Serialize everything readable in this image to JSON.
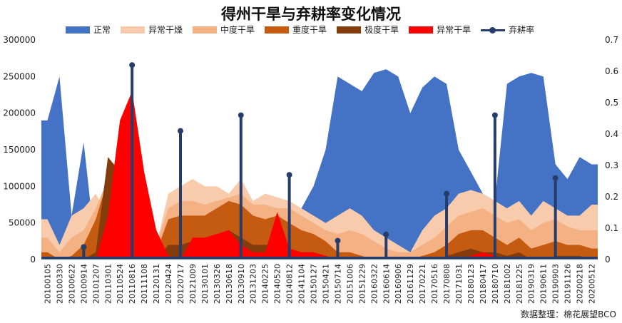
{
  "chart_data": {
    "type": "area",
    "title": "得州干旱与弃耕率变化情况",
    "y_left_ticks": [
      "0",
      "50000",
      "100000",
      "150000",
      "200000",
      "250000",
      "300000"
    ],
    "y_left_range": [
      0,
      300000
    ],
    "y_right_ticks": [
      "0",
      "0.1",
      "0.2",
      "0.3",
      "0.4",
      "0.5",
      "0.6",
      "0.7"
    ],
    "y_right_range": [
      0,
      0.7
    ],
    "x_tick_labels": [
      "20100105",
      "20100330",
      "20100622",
      "20100914",
      "20101207",
      "20110301",
      "20110524",
      "20110816",
      "20111108",
      "20120131",
      "20120424",
      "20120717",
      "20121009",
      "20130101",
      "20130326",
      "20130618",
      "20130910",
      "20131203",
      "20140225",
      "20140520",
      "20140812",
      "20141104",
      "20150127",
      "20150421",
      "20150714",
      "20151006",
      "20151229",
      "20160322",
      "20160614",
      "20160906",
      "20161129",
      "20170221",
      "20170516",
      "20170808",
      "20171031",
      "20180123",
      "20180417",
      "20180710",
      "20181002",
      "20181225",
      "20190319",
      "20190611",
      "20190903",
      "20191126",
      "20200218",
      "20200512"
    ],
    "series": [
      {
        "name": "正常",
        "color": "#4472C4",
        "type": "area",
        "values": [
          190000,
          250000,
          60000,
          160000,
          10000,
          5000,
          0,
          0,
          0,
          0,
          0,
          0,
          0,
          0,
          0,
          0,
          0,
          0,
          0,
          0,
          40000,
          70000,
          100000,
          150000,
          250000,
          240000,
          230000,
          255000,
          260000,
          250000,
          200000,
          235000,
          250000,
          240000,
          150000,
          120000,
          90000,
          80000,
          240000,
          250000,
          255000,
          250000,
          130000,
          110000,
          140000,
          130000
        ]
      },
      {
        "name": "异常干燥",
        "color": "#F8CBAD",
        "type": "area",
        "values": [
          55000,
          20000,
          60000,
          70000,
          90000,
          60000,
          30000,
          5000,
          0,
          20000,
          90000,
          100000,
          110000,
          100000,
          100000,
          90000,
          110000,
          80000,
          90000,
          85000,
          80000,
          70000,
          60000,
          50000,
          60000,
          70000,
          60000,
          40000,
          30000,
          20000,
          10000,
          40000,
          60000,
          70000,
          90000,
          95000,
          90000,
          80000,
          70000,
          80000,
          60000,
          80000,
          70000,
          60000,
          60000,
          75000
        ]
      },
      {
        "name": "中度干旱",
        "color": "#F4B183",
        "type": "area",
        "values": [
          30000,
          10000,
          30000,
          40000,
          70000,
          110000,
          60000,
          10000,
          0,
          20000,
          70000,
          80000,
          80000,
          75000,
          80000,
          85000,
          90000,
          75000,
          75000,
          70000,
          70000,
          60000,
          50000,
          40000,
          35000,
          40000,
          35000,
          25000,
          15000,
          10000,
          10000,
          20000,
          30000,
          45000,
          60000,
          65000,
          70000,
          60000,
          50000,
          55000,
          40000,
          50000,
          55000,
          45000,
          40000,
          40000
        ]
      },
      {
        "name": "重度干旱",
        "color": "#C55A11",
        "type": "area",
        "values": [
          10000,
          0,
          5000,
          20000,
          55000,
          110000,
          100000,
          40000,
          5000,
          10000,
          55000,
          60000,
          60000,
          60000,
          70000,
          80000,
          75000,
          60000,
          55000,
          60000,
          50000,
          40000,
          35000,
          25000,
          10000,
          10000,
          5000,
          0,
          0,
          0,
          0,
          5000,
          10000,
          20000,
          35000,
          40000,
          40000,
          30000,
          20000,
          30000,
          15000,
          20000,
          25000,
          20000,
          20000,
          15000
        ]
      },
      {
        "name": "极度干旱",
        "color": "#843C0C",
        "type": "area",
        "values": [
          0,
          0,
          0,
          0,
          10000,
          140000,
          120000,
          80000,
          30000,
          0,
          20000,
          20000,
          25000,
          25000,
          30000,
          40000,
          30000,
          20000,
          20000,
          20000,
          15000,
          10000,
          10000,
          5000,
          0,
          0,
          0,
          0,
          0,
          0,
          0,
          0,
          0,
          5000,
          10000,
          15000,
          10000,
          10000,
          5000,
          10000,
          0,
          0,
          5000,
          5000,
          5000,
          0
        ]
      },
      {
        "name": "异常干旱",
        "color": "#FF0000",
        "type": "area",
        "values": [
          0,
          0,
          0,
          0,
          0,
          60000,
          190000,
          230000,
          120000,
          40000,
          5000,
          0,
          30000,
          30000,
          35000,
          40000,
          20000,
          10000,
          10000,
          65000,
          15000,
          10000,
          10000,
          5000,
          0,
          0,
          0,
          0,
          0,
          0,
          0,
          0,
          0,
          0,
          0,
          5000,
          10000,
          5000,
          0,
          0,
          0,
          0,
          0,
          0,
          0,
          0
        ]
      },
      {
        "name": "弃耕率",
        "color": "#263D6B",
        "type": "lollipop",
        "axis": "right",
        "points": [
          {
            "x": "20100914",
            "value": 0.04
          },
          {
            "x": "20110816",
            "value": 0.62
          },
          {
            "x": "20120717",
            "value": 0.41
          },
          {
            "x": "20130910",
            "value": 0.46
          },
          {
            "x": "20140812",
            "value": 0.27
          },
          {
            "x": "20150714",
            "value": 0.06
          },
          {
            "x": "20160614",
            "value": 0.08
          },
          {
            "x": "20170808",
            "value": 0.21
          },
          {
            "x": "20180710",
            "value": 0.46
          },
          {
            "x": "20190903",
            "value": 0.26
          }
        ]
      }
    ],
    "legend_position": "top",
    "grid": false
  },
  "credit": "数据整理：棉花展望BCO"
}
